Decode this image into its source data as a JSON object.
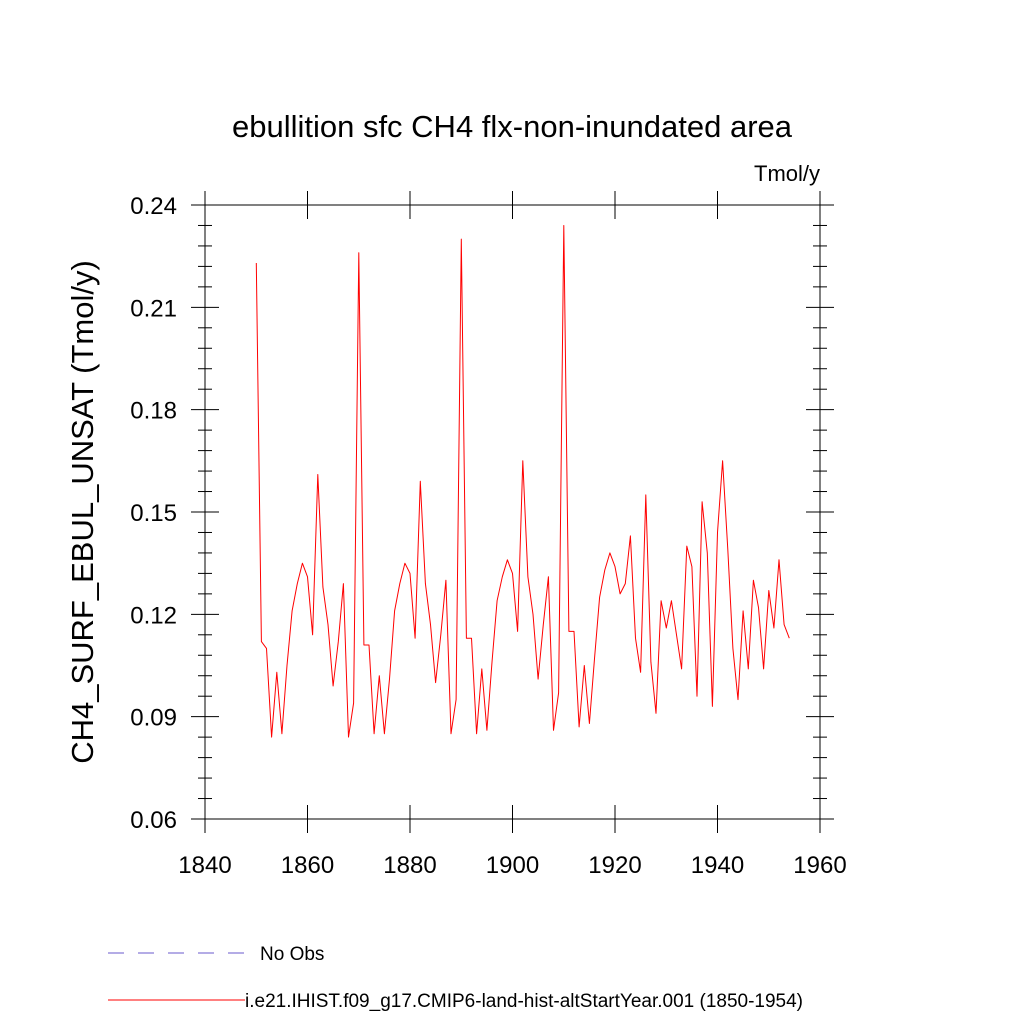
{
  "chart_data": {
    "type": "line",
    "title": "ebullition sfc CH4 flx-non-inundated area",
    "units_label": "Tmol/y",
    "ylabel": "CH4_SURF_EBUL_UNSAT  (Tmol/y)",
    "xlabel": "",
    "xlim": [
      1840,
      1960
    ],
    "ylim": [
      0.06,
      0.24
    ],
    "xticks": [
      1840,
      1860,
      1880,
      1900,
      1920,
      1940,
      1960
    ],
    "xtick_labels": [
      "1840",
      "1860",
      "1880",
      "1900",
      "1920",
      "1940",
      "1960"
    ],
    "yticks": [
      0.06,
      0.09,
      0.12,
      0.15,
      0.18,
      0.21,
      0.24
    ],
    "ytick_labels": [
      "0.06",
      "0.09",
      "0.12",
      "0.15",
      "0.18",
      "0.21",
      "0.24"
    ],
    "grid": false,
    "legend_position": "bottom",
    "series": [
      {
        "name": "No Obs",
        "color": "#6a5acd",
        "dash": "dashed",
        "x": [],
        "y": []
      },
      {
        "name": "i.e21.IHIST.f09_g17.CMIP6-land-hist-altStartYear.001 (1850-1954)",
        "color": "#ff0000",
        "dash": "solid",
        "x": [
          1850,
          1851,
          1852,
          1853,
          1854,
          1855,
          1856,
          1857,
          1858,
          1859,
          1860,
          1861,
          1862,
          1863,
          1864,
          1865,
          1866,
          1867,
          1868,
          1869,
          1870,
          1871,
          1872,
          1873,
          1874,
          1875,
          1876,
          1877,
          1878,
          1879,
          1880,
          1881,
          1882,
          1883,
          1884,
          1885,
          1886,
          1887,
          1888,
          1889,
          1890,
          1891,
          1892,
          1893,
          1894,
          1895,
          1896,
          1897,
          1898,
          1899,
          1900,
          1901,
          1902,
          1903,
          1904,
          1905,
          1906,
          1907,
          1908,
          1909,
          1910,
          1911,
          1912,
          1913,
          1914,
          1915,
          1916,
          1917,
          1918,
          1919,
          1920,
          1921,
          1922,
          1923,
          1924,
          1925,
          1926,
          1927,
          1928,
          1929,
          1930,
          1931,
          1932,
          1933,
          1934,
          1935,
          1936,
          1937,
          1938,
          1939,
          1940,
          1941,
          1942,
          1943,
          1944,
          1945,
          1946,
          1947,
          1948,
          1949,
          1950,
          1951,
          1952,
          1953,
          1954
        ],
        "y": [
          0.223,
          0.112,
          0.11,
          0.084,
          0.103,
          0.085,
          0.105,
          0.121,
          0.129,
          0.135,
          0.131,
          0.114,
          0.161,
          0.128,
          0.117,
          0.099,
          0.112,
          0.129,
          0.084,
          0.094,
          0.226,
          0.111,
          0.111,
          0.085,
          0.102,
          0.085,
          0.101,
          0.121,
          0.129,
          0.135,
          0.132,
          0.113,
          0.159,
          0.129,
          0.117,
          0.1,
          0.114,
          0.13,
          0.085,
          0.095,
          0.23,
          0.113,
          0.113,
          0.085,
          0.104,
          0.086,
          0.106,
          0.124,
          0.131,
          0.136,
          0.132,
          0.115,
          0.165,
          0.131,
          0.12,
          0.101,
          0.117,
          0.131,
          0.086,
          0.097,
          0.234,
          0.115,
          0.115,
          0.087,
          0.105,
          0.088,
          0.107,
          0.125,
          0.133,
          0.138,
          0.134,
          0.126,
          0.129,
          0.143,
          0.113,
          0.103,
          0.155,
          0.106,
          0.091,
          0.124,
          0.116,
          0.124,
          0.114,
          0.104,
          0.14,
          0.134,
          0.096,
          0.153,
          0.138,
          0.093,
          0.144,
          0.165,
          0.139,
          0.11,
          0.095,
          0.121,
          0.104,
          0.13,
          0.122,
          0.104,
          0.127,
          0.116,
          0.136,
          0.117,
          0.113
        ]
      }
    ]
  }
}
